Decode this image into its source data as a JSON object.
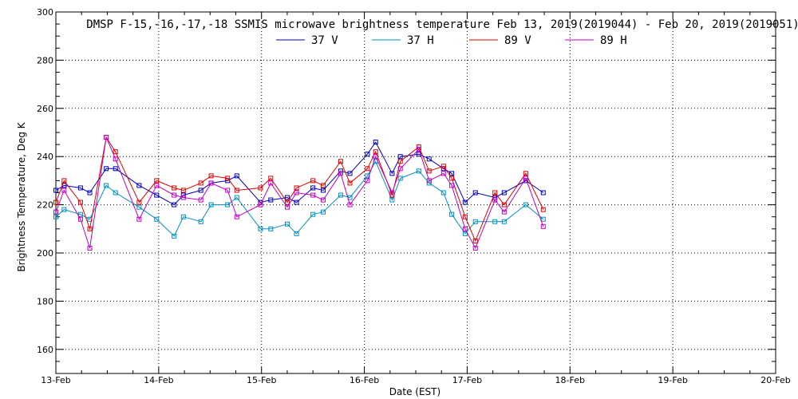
{
  "chart_data": {
    "type": "line",
    "title": "DMSP F-15,-16,-17,-18 SSMIS microwave brightness temperature Feb 13, 2019(2019044) - Feb 20, 2019(2019051)",
    "xlabel": "Date (EST)",
    "ylabel": "Brightness Temperature, Deg K",
    "xlim": [
      0,
      7
    ],
    "ylim": [
      150,
      300
    ],
    "x_ticks": [
      {
        "value": 0,
        "label": "13-Feb"
      },
      {
        "value": 1,
        "label": "14-Feb"
      },
      {
        "value": 2,
        "label": "15-Feb"
      },
      {
        "value": 3,
        "label": "16-Feb"
      },
      {
        "value": 4,
        "label": "17-Feb"
      },
      {
        "value": 5,
        "label": "18-Feb"
      },
      {
        "value": 6,
        "label": "19-Feb"
      },
      {
        "value": 7,
        "label": "20-Feb"
      }
    ],
    "y_ticks": [
      160,
      180,
      200,
      220,
      240,
      260,
      280,
      300
    ],
    "grid": true,
    "legend_position": "top-center",
    "series": [
      {
        "name": "37 V",
        "color": "#0000c0",
        "x": [
          0.0,
          0.08,
          0.24,
          0.33,
          0.49,
          0.58,
          0.81,
          0.98,
          1.15,
          1.24,
          1.41,
          1.51,
          1.67,
          1.76,
          1.99,
          2.09,
          2.25,
          2.34,
          2.5,
          2.6,
          2.77,
          2.86,
          3.03,
          3.11,
          3.27,
          3.35,
          3.53,
          3.63,
          3.77,
          3.85,
          3.98,
          4.08,
          4.27,
          4.36,
          4.57,
          4.74
        ],
        "y": [
          226,
          228,
          227,
          225,
          235,
          235,
          228,
          224,
          220,
          224,
          226,
          229,
          230,
          232,
          221,
          222,
          223,
          221,
          227,
          226,
          234,
          233,
          241,
          246,
          233,
          240,
          241,
          239,
          235,
          233,
          221,
          225,
          223,
          225,
          230,
          225
        ]
      },
      {
        "name": "37 H",
        "color": "#0090c0",
        "x": [
          0.0,
          0.08,
          0.24,
          0.33,
          0.49,
          0.58,
          0.81,
          0.98,
          1.15,
          1.24,
          1.41,
          1.51,
          1.67,
          1.76,
          1.99,
          2.09,
          2.25,
          2.34,
          2.5,
          2.6,
          2.77,
          2.86,
          3.03,
          3.11,
          3.27,
          3.35,
          3.53,
          3.63,
          3.77,
          3.85,
          3.98,
          4.08,
          4.27,
          4.36,
          4.57,
          4.74
        ],
        "y": [
          215,
          218,
          216,
          214,
          228,
          225,
          219,
          214,
          207,
          215,
          213,
          220,
          220,
          223,
          210,
          210,
          212,
          208,
          216,
          217,
          224,
          223,
          232,
          238,
          222,
          231,
          234,
          229,
          225,
          216,
          208,
          213,
          213,
          213,
          220,
          214
        ]
      },
      {
        "name": "89 V",
        "color": "#e00000",
        "x": [
          0.0,
          0.08,
          0.24,
          0.33,
          0.49,
          0.58,
          0.81,
          0.98,
          1.15,
          1.24,
          1.41,
          1.51,
          1.67,
          1.76,
          1.99,
          2.09,
          2.25,
          2.34,
          2.5,
          2.6,
          2.77,
          2.86,
          3.03,
          3.11,
          3.27,
          3.35,
          3.53,
          3.63,
          3.77,
          3.85,
          3.98,
          4.08,
          4.27,
          4.36,
          4.57,
          4.74
        ],
        "y": [
          221,
          230,
          221,
          210,
          248,
          242,
          221,
          230,
          227,
          226,
          229,
          232,
          231,
          226,
          227,
          231,
          221,
          227,
          230,
          228,
          238,
          229,
          235,
          242,
          224,
          238,
          244,
          234,
          236,
          231,
          215,
          205,
          225,
          220,
          233,
          218
        ]
      },
      {
        "name": "89 H",
        "color": "#c000c0",
        "x": [
          0.0,
          0.08,
          0.24,
          0.33,
          0.49,
          0.58,
          0.81,
          0.98,
          1.15,
          1.24,
          1.41,
          1.51,
          1.67,
          1.76,
          1.99,
          2.09,
          2.25,
          2.34,
          2.5,
          2.6,
          2.77,
          2.86,
          3.03,
          3.11,
          3.27,
          3.35,
          3.53,
          3.63,
          3.77,
          3.85,
          3.98,
          4.08,
          4.27,
          4.36,
          4.57,
          4.74
        ],
        "y": [
          217,
          226,
          214,
          202,
          248,
          239,
          214,
          228,
          224,
          223,
          222,
          229,
          226,
          215,
          220,
          229,
          219,
          225,
          224,
          222,
          233,
          220,
          230,
          240,
          225,
          235,
          243,
          230,
          233,
          228,
          210,
          202,
          222,
          217,
          231,
          211
        ]
      }
    ]
  }
}
